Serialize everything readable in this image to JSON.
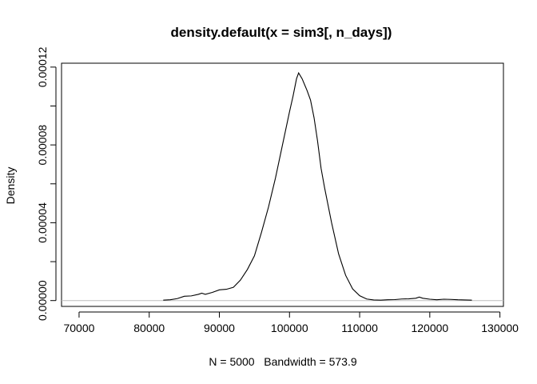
{
  "chart_data": {
    "type": "line",
    "title": "density.default(x = sim3[, n_days])",
    "xlabel": "N = 5000   Bandwidth = 573.9",
    "ylabel": "Density",
    "xlim": [
      67500,
      130500
    ],
    "ylim": [
      -3e-06,
      0.000122
    ],
    "x_ticks": [
      70000,
      80000,
      90000,
      100000,
      110000,
      120000,
      130000
    ],
    "x_tick_labels": [
      "70000",
      "80000",
      "90000",
      "100000",
      "110000",
      "120000",
      "130000"
    ],
    "y_ticks": [
      0.0,
      2e-05,
      4e-05,
      6e-05,
      8e-05,
      0.0001,
      0.00012
    ],
    "y_tick_labels": [
      "0.00000",
      "",
      "0.00004",
      "",
      "0.00008",
      "",
      "0.00012"
    ],
    "grid": false,
    "baseline": {
      "value": 0,
      "color": "#bebebe"
    },
    "series": [
      {
        "color": "#000000",
        "points": [
          [
            82000,
            2e-07
          ],
          [
            83000,
            4e-07
          ],
          [
            84000,
            1e-06
          ],
          [
            85000,
            2.2e-06
          ],
          [
            86000,
            2.4e-06
          ],
          [
            87000,
            3.2e-06
          ],
          [
            87500,
            3.8e-06
          ],
          [
            88000,
            3.2e-06
          ],
          [
            89000,
            4.2e-06
          ],
          [
            90000,
            5.5e-06
          ],
          [
            91000,
            5.8e-06
          ],
          [
            92000,
            6.8e-06
          ],
          [
            93000,
            1.05e-05
          ],
          [
            94000,
            1.6e-05
          ],
          [
            95000,
            2.3e-05
          ],
          [
            96000,
            3.5e-05
          ],
          [
            97000,
            4.8e-05
          ],
          [
            98000,
            6.3e-05
          ],
          [
            99000,
            8e-05
          ],
          [
            100000,
            9.7e-05
          ],
          [
            100500,
            0.000105
          ],
          [
            101000,
            0.000114
          ],
          [
            101300,
            0.000117
          ],
          [
            101800,
            0.000114
          ],
          [
            102500,
            0.000108
          ],
          [
            103000,
            0.000103
          ],
          [
            103500,
            9.4e-05
          ],
          [
            104000,
            8.2e-05
          ],
          [
            104500,
            6.8e-05
          ],
          [
            105000,
            5.8e-05
          ],
          [
            106000,
            4e-05
          ],
          [
            107000,
            2.4e-05
          ],
          [
            108000,
            1.3e-05
          ],
          [
            109000,
            6e-06
          ],
          [
            110000,
            2.5e-06
          ],
          [
            111000,
            8e-07
          ],
          [
            112000,
            3e-07
          ],
          [
            113000,
            2e-07
          ],
          [
            114000,
            4e-07
          ],
          [
            115000,
            5e-07
          ],
          [
            116000,
            8e-07
          ],
          [
            117000,
            9e-07
          ],
          [
            118000,
            1.2e-06
          ],
          [
            118500,
            1.8e-06
          ],
          [
            119000,
            1.2e-06
          ],
          [
            120000,
            7e-07
          ],
          [
            121000,
            4e-07
          ],
          [
            122000,
            7e-07
          ],
          [
            123000,
            6e-07
          ],
          [
            124000,
            4e-07
          ],
          [
            125000,
            3e-07
          ],
          [
            126000,
            2e-07
          ]
        ]
      }
    ]
  }
}
